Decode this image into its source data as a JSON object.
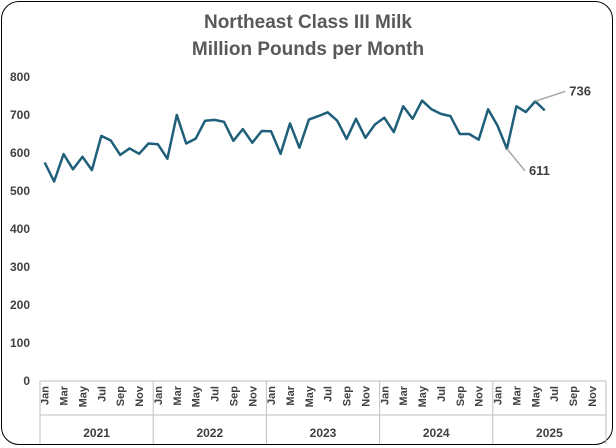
{
  "chart_data": {
    "type": "line",
    "title_line1": "Northeast Class III Milk",
    "title_line2": "Million Pounds per Month",
    "xlabel": "",
    "ylabel": "",
    "ylim": [
      0,
      800
    ],
    "yticks": [
      0,
      100,
      200,
      300,
      400,
      500,
      600,
      700,
      800
    ],
    "month_labels": [
      "Jan",
      "Mar",
      "May",
      "Jul",
      "Sep",
      "Nov"
    ],
    "years": [
      "2021",
      "2022",
      "2023",
      "2024",
      "2025"
    ],
    "grid": false,
    "legend": "none",
    "line_color": "#1f5f7a",
    "series": [
      {
        "values": [
          575,
          525,
          597,
          557,
          590,
          555,
          645,
          633,
          595,
          612,
          598,
          625,
          623,
          585,
          700,
          625,
          638,
          685,
          687,
          682,
          632,
          663,
          627,
          658,
          657,
          598,
          678,
          614,
          688,
          697,
          707,
          685,
          637,
          690,
          640,
          675,
          693,
          655,
          723,
          690,
          738,
          715,
          703,
          697,
          650,
          650,
          635,
          715,
          672,
          611,
          723,
          708,
          736,
          712
        ]
      }
    ],
    "annotations": [
      {
        "label": "736",
        "value": 736,
        "index": 52
      },
      {
        "label": "611",
        "value": 611,
        "index": 49
      }
    ]
  }
}
